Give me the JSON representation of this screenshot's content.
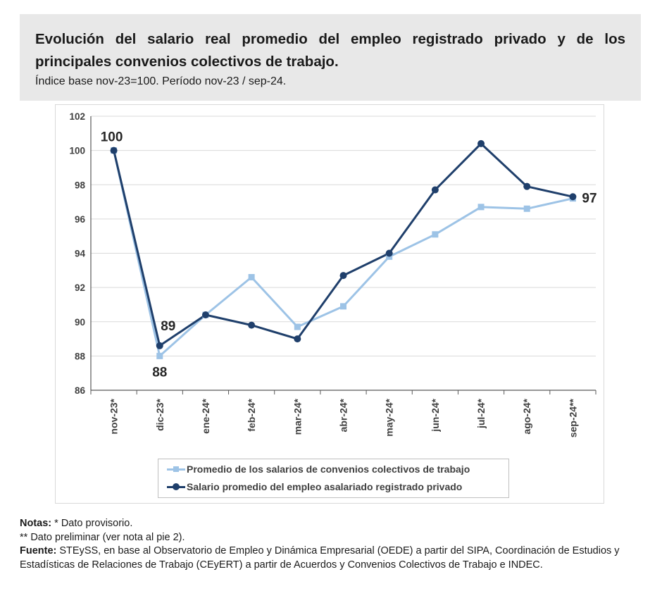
{
  "header": {
    "title": "Evolución del salario real promedio del empleo registrado privado y de los principales convenios colectivos de trabajo.",
    "subtitle": "Índice base nov-23=100. Período nov-23 / sep-24."
  },
  "colors": {
    "convenios": "#9dc3e6",
    "salario": "#1f3f6b",
    "grid": "#d9d9d9",
    "axis_text": "#404040"
  },
  "chart_data": {
    "type": "line",
    "title": "Evolución del salario real promedio del empleo registrado privado y de los principales convenios colectivos de trabajo.",
    "subtitle": "Índice base nov-23=100. Período nov-23 / sep-24.",
    "categories": [
      "nov-23*",
      "dic-23*",
      "ene-24*",
      "feb-24*",
      "mar-24*",
      "abr-24*",
      "may-24*",
      "jun-24*",
      "jul-24*",
      "ago-24*",
      "sep-24**"
    ],
    "ylim": [
      86,
      102
    ],
    "yticks": [
      86,
      88,
      90,
      92,
      94,
      96,
      98,
      100,
      102
    ],
    "grid": true,
    "legend_position": "bottom",
    "series": [
      {
        "name": "Promedio de los salarios de convenios colectivos de trabajo",
        "marker": "square",
        "values": [
          100,
          88.0,
          90.4,
          92.6,
          89.7,
          90.9,
          93.8,
          95.1,
          96.7,
          96.6,
          97.2
        ]
      },
      {
        "name": "Salario promedio del empleo asalariado registrado privado",
        "marker": "circle",
        "values": [
          100,
          88.6,
          90.4,
          89.8,
          89.0,
          92.7,
          94.0,
          97.7,
          100.4,
          97.9,
          97.3
        ]
      }
    ],
    "annotations": [
      {
        "text": "100",
        "category": "nov-23*",
        "value": 100
      },
      {
        "text": "89",
        "category": "dic-23*",
        "value": 88.6
      },
      {
        "text": "88",
        "category": "dic-23*",
        "value": 88.0
      },
      {
        "text": "97",
        "category": "sep-24**",
        "value": 97.3
      }
    ]
  },
  "notes": {
    "n1_label": "Notas:",
    "n1_text": " * Dato provisorio.",
    "n2_text": "** Dato preliminar (ver nota al pie 2).",
    "n3_label": "Fuente:",
    "n3_text": " STEySS, en base al Observatorio de Empleo y Dinámica Empresarial (OEDE) a partir del SIPA, Coordinación de Estudios y Estadísticas de Relaciones de Trabajo (CEyERT) a partir de Acuerdos y Convenios Colectivos de Trabajo e INDEC."
  }
}
